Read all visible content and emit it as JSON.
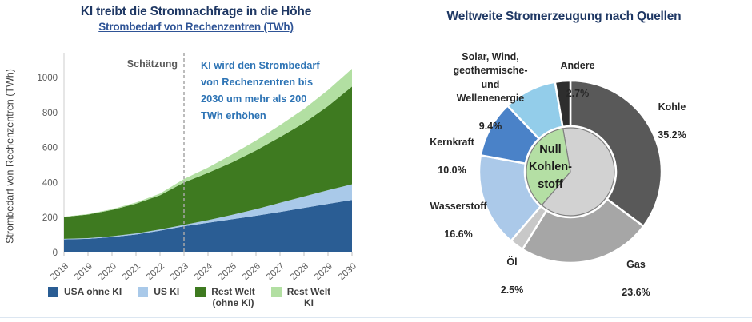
{
  "left_chart": {
    "title": "KI treibt die Stromnachfrage in die Höhe",
    "subtitle": "Strombedarf von Rechenzentren (TWh)",
    "y_axis_label": "Strombedarf von Rechenzentren (TWh)",
    "estimate_label": "Schätzung",
    "annotation": "KI wird den Strombedarf\nvon Rechenzentren bis\n2030 um mehr als 200\nTWh erhöhen",
    "legend": [
      {
        "label": "USA ohne KI"
      },
      {
        "label": "US KI"
      },
      {
        "label": "Rest Welt\n(ohne KI)"
      },
      {
        "label": "Rest Welt\nKI"
      }
    ]
  },
  "right_chart": {
    "title": "Weltweite Stromerzeugung nach Quellen",
    "center_label": "Null\nKohlen-\nstoff"
  },
  "chart_data": [
    {
      "type": "area",
      "title": "Strombedarf von Rechenzentren (TWh)",
      "xlabel": "",
      "ylabel": "Strombedarf von Rechenzentren (TWh)",
      "stacked": true,
      "grid": false,
      "legend_position": "bottom",
      "x": [
        "2018",
        "2019",
        "2020",
        "2021",
        "2022",
        "2023",
        "2024",
        "2025",
        "2026",
        "2027",
        "2028",
        "2029",
        "2030"
      ],
      "yticks": [
        0,
        200,
        400,
        600,
        800,
        1000
      ],
      "ylim": [
        0,
        1120
      ],
      "estimate_divider_x": "2023",
      "series": [
        {
          "id": "usa-ohne-ki",
          "name": "USA ohne KI",
          "color": "#2a5d94",
          "values": [
            75,
            78,
            88,
            103,
            125,
            150,
            170,
            190,
            210,
            232,
            255,
            278,
            300
          ]
        },
        {
          "id": "us-ki",
          "name": "US KI",
          "color": "#a9c9e9",
          "values": [
            3,
            4,
            5,
            6,
            7,
            8,
            15,
            25,
            38,
            52,
            65,
            78,
            90
          ]
        },
        {
          "id": "rest-welt-ohne-ki",
          "name": "Rest Welt (ohne KI)",
          "color": "#3e7a20",
          "values": [
            125,
            135,
            150,
            170,
            195,
            242,
            270,
            300,
            335,
            375,
            420,
            480,
            558
          ]
        },
        {
          "id": "rest-welt-ki",
          "name": "Rest Welt KI",
          "color": "#b2dfa2",
          "values": [
            2,
            3,
            5,
            7,
            10,
            20,
            30,
            45,
            57,
            68,
            80,
            92,
            102
          ]
        }
      ]
    },
    {
      "type": "pie",
      "title": "Weltweite Stromerzeugung nach Quellen",
      "donut": true,
      "units": "%",
      "slices": [
        {
          "id": "kohle",
          "label": "Kohle",
          "pct": "35.2%",
          "value": 35.2,
          "color": "#595959"
        },
        {
          "id": "gas",
          "label": "Gas",
          "pct": "23.6%",
          "value": 23.6,
          "color": "#a6a6a6"
        },
        {
          "id": "oel",
          "label": "Öl",
          "pct": "2.5%",
          "value": 2.5,
          "color": "#c8c8c8"
        },
        {
          "id": "wasserstoff",
          "label": "Wasserstoff",
          "pct": "16.6%",
          "value": 16.6,
          "color": "#abc9e9"
        },
        {
          "id": "kernkraft",
          "label": "Kernkraft",
          "pct": "10.0%",
          "value": 10.0,
          "color": "#4a82c8"
        },
        {
          "id": "solar-wind",
          "label": "Solar, Wind,\ngeothermische-\nund\nWellenenergie",
          "pct": "9.4%",
          "value": 9.4,
          "color": "#93cdea"
        },
        {
          "id": "andere",
          "label": "Andere",
          "pct": "2.7%",
          "value": 2.7,
          "color": "#2e2e2e"
        }
      ],
      "inner_pie": {
        "label": "Null Kohlenstoff",
        "zero_carbon_slice_ids": [
          "wasserstoff",
          "kernkraft",
          "solar-wind"
        ],
        "zero_carbon_value": 36.0,
        "green_color": "#b4dfa4",
        "gray_color": "#d2d2d2",
        "border_color": "#7f7f7f"
      }
    }
  ]
}
